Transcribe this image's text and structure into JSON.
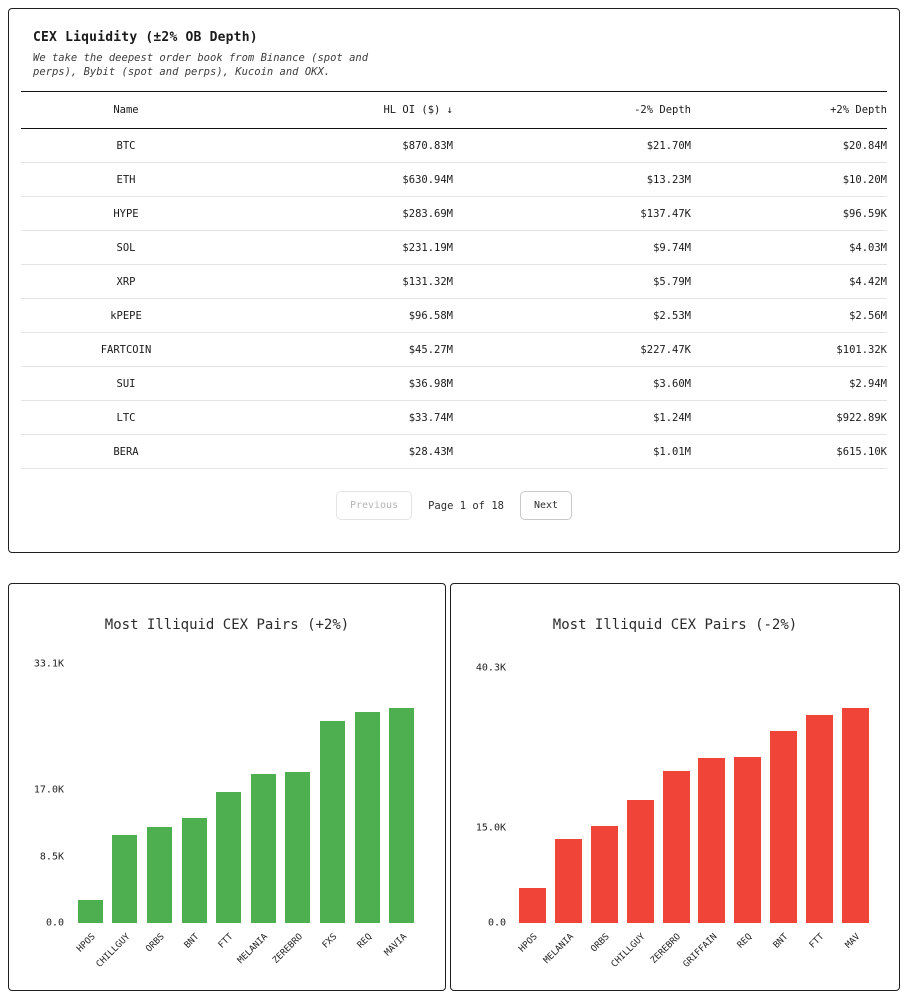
{
  "table_card": {
    "title": "CEX Liquidity (±2% OB Depth)",
    "subtitle": "We take the deepest order book from Binance (spot and perps), Bybit (spot and perps), Kucoin and OKX.",
    "columns": [
      "Name",
      "HL OI ($) ↓",
      "-2% Depth",
      "+2% Depth"
    ],
    "rows": [
      [
        "BTC",
        "$870.83M",
        "$21.70M",
        "$20.84M"
      ],
      [
        "ETH",
        "$630.94M",
        "$13.23M",
        "$10.20M"
      ],
      [
        "HYPE",
        "$283.69M",
        "$137.47K",
        "$96.59K"
      ],
      [
        "SOL",
        "$231.19M",
        "$9.74M",
        "$4.03M"
      ],
      [
        "XRP",
        "$131.32M",
        "$5.79M",
        "$4.42M"
      ],
      [
        "kPEPE",
        "$96.58M",
        "$2.53M",
        "$2.56M"
      ],
      [
        "FARTCOIN",
        "$45.27M",
        "$227.47K",
        "$101.32K"
      ],
      [
        "SUI",
        "$36.98M",
        "$3.60M",
        "$2.94M"
      ],
      [
        "LTC",
        "$33.74M",
        "$1.24M",
        "$922.89K"
      ],
      [
        "BERA",
        "$28.43M",
        "$1.01M",
        "$615.10K"
      ]
    ],
    "pagination": {
      "previous_label": "Previous",
      "page_label": "Page 1 of 18",
      "next_label": "Next"
    }
  },
  "chart_data": [
    {
      "type": "bar",
      "title": "Most Illiquid CEX Pairs (+2%)",
      "categories": [
        "HPOS",
        "CHILLGUY",
        "ORBS",
        "BNT",
        "FTT",
        "MELANIA",
        "ZEREBRO",
        "FXS",
        "REQ",
        "MAVIA"
      ],
      "values": [
        3000,
        11200,
        12300,
        13400,
        16800,
        19000,
        19300,
        25800,
        27000,
        27500
      ],
      "bar_color": "#4daf50",
      "ylim": [
        0,
        33500
      ],
      "yticks": [
        {
          "label": "33.1K",
          "value": 33100
        },
        {
          "label": "17.0K",
          "value": 17000
        },
        {
          "label": "8.5K",
          "value": 8500
        },
        {
          "label": "0.0",
          "value": 0
        }
      ],
      "xlabel": "",
      "ylabel": "",
      "grid": false,
      "legend": "none"
    },
    {
      "type": "bar",
      "title": "Most Illiquid CEX Pairs (-2%)",
      "categories": [
        "HPOS",
        "MELANIA",
        "ORBS",
        "CHILLGUY",
        "ZEREBRO",
        "GRIFFAIN",
        "REQ",
        "BNT",
        "FTT",
        "MAV"
      ],
      "values": [
        5500,
        13200,
        15300,
        19400,
        24000,
        26000,
        26300,
        30400,
        32800,
        33900
      ],
      "bar_color": "#f04438",
      "ylim": [
        0,
        41400
      ],
      "yticks": [
        {
          "label": "40.3K",
          "value": 40300
        },
        {
          "label": "15.0K",
          "value": 15000
        },
        {
          "label": "0.0",
          "value": 0
        }
      ],
      "xlabel": "",
      "ylabel": "",
      "grid": false,
      "legend": "none"
    }
  ]
}
